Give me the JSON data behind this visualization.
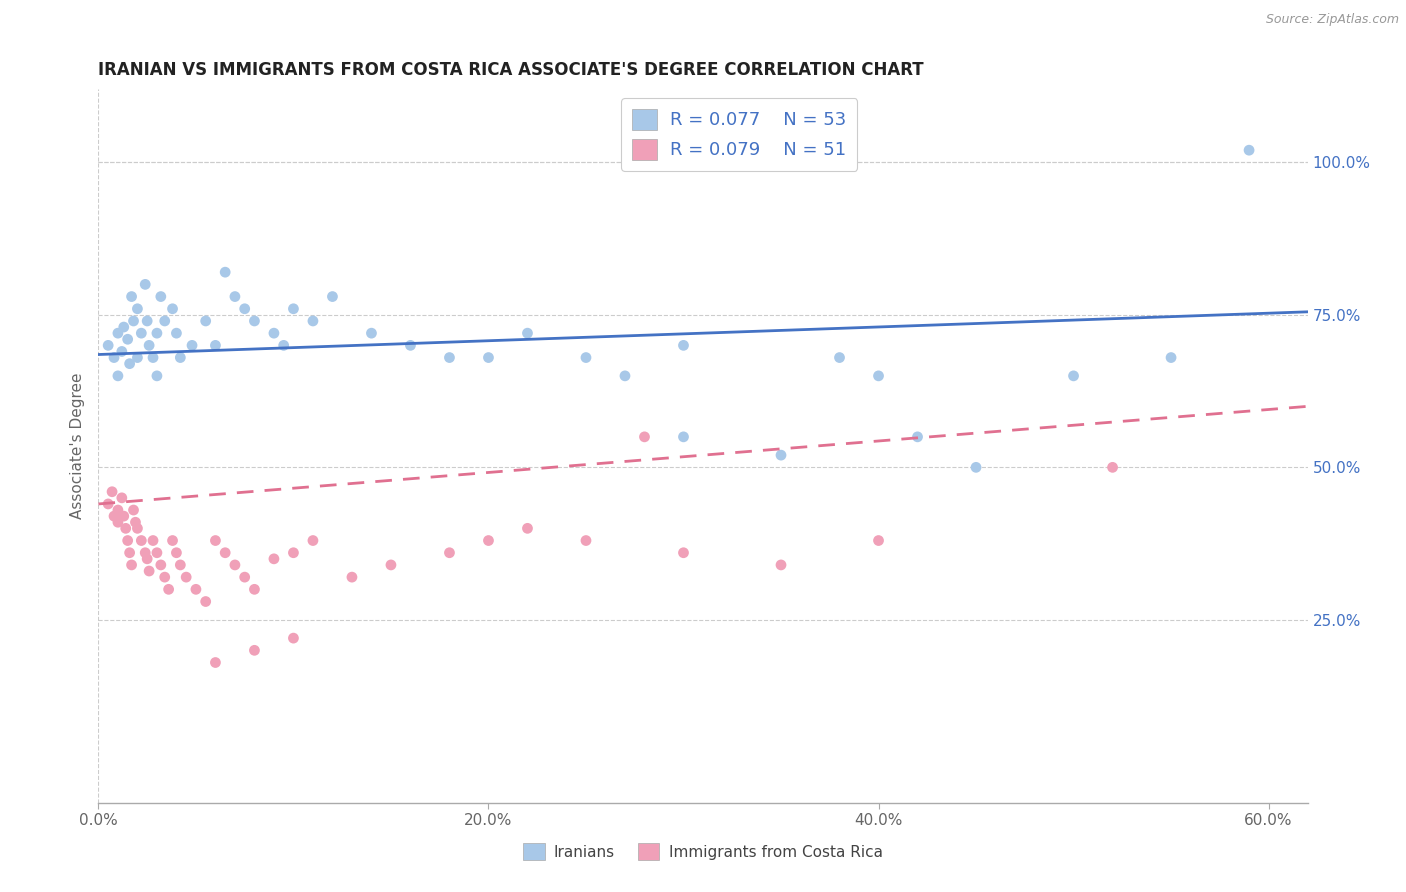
{
  "title": "IRANIAN VS IMMIGRANTS FROM COSTA RICA ASSOCIATE'S DEGREE CORRELATION CHART",
  "source_text": "Source: ZipAtlas.com",
  "ylabel": "Associate's Degree",
  "xlim": [
    0.0,
    0.62
  ],
  "ylim": [
    -0.05,
    1.12
  ],
  "xtick_labels": [
    "0.0%",
    "20.0%",
    "40.0%",
    "60.0%"
  ],
  "xtick_values": [
    0.0,
    0.2,
    0.4,
    0.6
  ],
  "ytick_labels": [
    "25.0%",
    "50.0%",
    "75.0%",
    "100.0%"
  ],
  "ytick_values": [
    0.25,
    0.5,
    0.75,
    1.0
  ],
  "legend_label1": "Iranians",
  "legend_label2": "Immigrants from Costa Rica",
  "color_blue": "#A8C8E8",
  "color_pink": "#F0A0B8",
  "color_blue_line": "#4472C4",
  "color_pink_line": "#E07090",
  "trendline1_x": [
    0.0,
    0.62
  ],
  "trendline1_y": [
    0.685,
    0.755
  ],
  "trendline2_x": [
    0.0,
    0.62
  ],
  "trendline2_y": [
    0.44,
    0.6
  ],
  "iranians_x": [
    0.005,
    0.008,
    0.01,
    0.01,
    0.012,
    0.013,
    0.015,
    0.016,
    0.017,
    0.018,
    0.02,
    0.02,
    0.022,
    0.024,
    0.025,
    0.026,
    0.028,
    0.03,
    0.03,
    0.032,
    0.034,
    0.038,
    0.04,
    0.042,
    0.048,
    0.055,
    0.06,
    0.065,
    0.07,
    0.075,
    0.08,
    0.09,
    0.095,
    0.1,
    0.11,
    0.12,
    0.14,
    0.16,
    0.18,
    0.2,
    0.22,
    0.25,
    0.27,
    0.3,
    0.3,
    0.35,
    0.38,
    0.4,
    0.42,
    0.45,
    0.5,
    0.55,
    0.59
  ],
  "iranians_y": [
    0.7,
    0.68,
    0.72,
    0.65,
    0.69,
    0.73,
    0.71,
    0.67,
    0.78,
    0.74,
    0.68,
    0.76,
    0.72,
    0.8,
    0.74,
    0.7,
    0.68,
    0.72,
    0.65,
    0.78,
    0.74,
    0.76,
    0.72,
    0.68,
    0.7,
    0.74,
    0.7,
    0.82,
    0.78,
    0.76,
    0.74,
    0.72,
    0.7,
    0.76,
    0.74,
    0.78,
    0.72,
    0.7,
    0.68,
    0.68,
    0.72,
    0.68,
    0.65,
    0.7,
    0.55,
    0.52,
    0.68,
    0.65,
    0.55,
    0.5,
    0.65,
    0.68,
    1.02
  ],
  "costarica_x": [
    0.005,
    0.007,
    0.008,
    0.01,
    0.01,
    0.012,
    0.013,
    0.014,
    0.015,
    0.016,
    0.017,
    0.018,
    0.019,
    0.02,
    0.022,
    0.024,
    0.025,
    0.026,
    0.028,
    0.03,
    0.032,
    0.034,
    0.036,
    0.038,
    0.04,
    0.042,
    0.045,
    0.05,
    0.055,
    0.06,
    0.065,
    0.07,
    0.075,
    0.08,
    0.09,
    0.1,
    0.11,
    0.13,
    0.15,
    0.18,
    0.2,
    0.22,
    0.25,
    0.3,
    0.35,
    0.4,
    0.52,
    0.06,
    0.08,
    0.1,
    0.28
  ],
  "costarica_y": [
    0.44,
    0.46,
    0.42,
    0.43,
    0.41,
    0.45,
    0.42,
    0.4,
    0.38,
    0.36,
    0.34,
    0.43,
    0.41,
    0.4,
    0.38,
    0.36,
    0.35,
    0.33,
    0.38,
    0.36,
    0.34,
    0.32,
    0.3,
    0.38,
    0.36,
    0.34,
    0.32,
    0.3,
    0.28,
    0.38,
    0.36,
    0.34,
    0.32,
    0.3,
    0.35,
    0.36,
    0.38,
    0.32,
    0.34,
    0.36,
    0.38,
    0.4,
    0.38,
    0.36,
    0.34,
    0.38,
    0.5,
    0.18,
    0.2,
    0.22,
    0.55
  ]
}
